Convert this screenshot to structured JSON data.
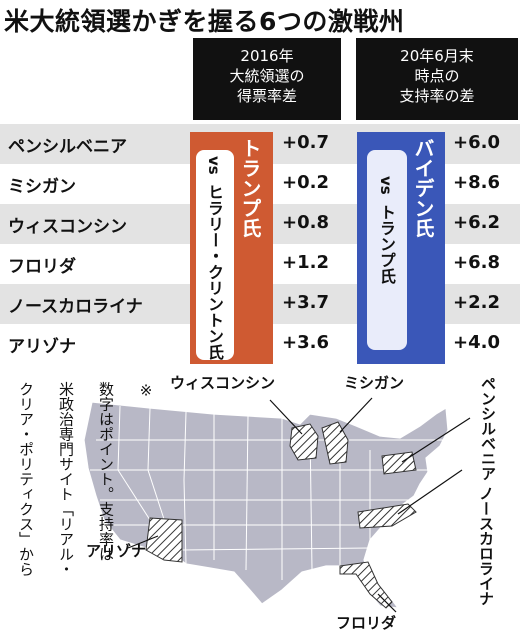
{
  "title": "米大統領選かぎを握る6つの激戦州",
  "header": {
    "col1_lines": [
      "2016年",
      "大統領選の",
      "得票率差"
    ],
    "col2_lines": [
      "20年6月末",
      "時点の",
      "支持率の差"
    ]
  },
  "matchup1": {
    "candidate": "トランプ氏",
    "vs": "vs",
    "opponent": "ヒラリー・クリントン氏",
    "color": "#cf5a32"
  },
  "matchup2": {
    "candidate": "バイデン氏",
    "vs": "vs",
    "opponent": "トランプ氏",
    "color": "#3a57b8"
  },
  "chart_data": {
    "type": "table",
    "title": "米大統領選かぎを握る6つの激戦州",
    "columns": [
      "2016年大統領選の得票率差",
      "20年6月末時点の支持率の差"
    ],
    "rows": [
      {
        "state": "ペンシルベニア",
        "v2016": "+0.7",
        "v2020": "+6.0"
      },
      {
        "state": "ミシガン",
        "v2016": "+0.2",
        "v2020": "+8.6"
      },
      {
        "state": "ウィスコンシン",
        "v2016": "+0.8",
        "v2020": "+6.2"
      },
      {
        "state": "フロリダ",
        "v2016": "+1.2",
        "v2020": "+6.8"
      },
      {
        "state": "ノースカロライナ",
        "v2016": "+3.7",
        "v2020": "+2.2"
      },
      {
        "state": "アリゾナ",
        "v2016": "+3.6",
        "v2020": "+4.0"
      }
    ]
  },
  "note": {
    "lines": [
      "※",
      "数字はポイント。支持率は",
      "米政治専門サイト「リアル・",
      "クリア・ポリティクス」から"
    ]
  },
  "map": {
    "labels": {
      "wisconsin": "ウィスコンシン",
      "michigan": "ミシガン",
      "pennsylvania": "ペンシルベニア",
      "north_carolina": "ノースカロライナ",
      "arizona": "アリゾナ",
      "florida": "フロリダ"
    },
    "colors": {
      "land": "#b8b8c6",
      "highlight": "#ffffff",
      "hatch": "#333333"
    }
  }
}
